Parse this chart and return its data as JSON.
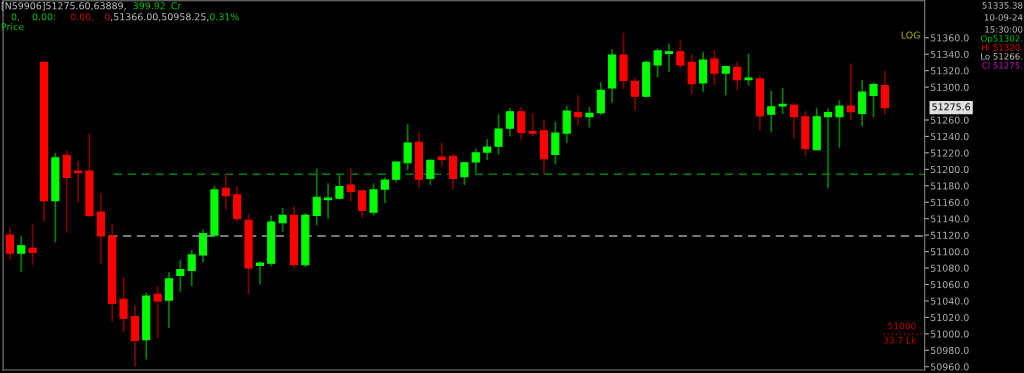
{
  "chart_data": {
    "type": "candlestick",
    "categories": [
      null,
      null,
      null,
      null,
      null,
      null,
      null,
      null,
      null,
      null,
      null,
      null,
      null,
      null,
      null,
      null,
      null,
      null,
      null,
      null,
      null,
      null,
      null,
      null,
      null,
      null,
      null,
      null,
      null,
      null,
      null,
      null,
      null,
      null,
      null,
      null,
      null,
      null,
      null,
      null,
      null,
      null,
      null,
      null,
      null,
      null,
      null,
      null,
      null,
      null,
      null,
      null,
      null,
      null,
      null,
      null,
      null,
      null,
      null,
      null,
      null,
      null,
      null,
      null,
      null,
      null,
      null,
      null,
      null,
      null,
      null,
      null,
      null,
      null,
      null,
      null,
      null,
      null
    ],
    "ohlc": [
      [
        51120,
        51129,
        51090,
        51098
      ],
      [
        51098,
        51119,
        51075,
        51107
      ],
      [
        51104,
        51133,
        51084,
        51099
      ],
      [
        51330,
        51331,
        51137,
        51162
      ],
      [
        51162,
        51220,
        51111,
        51214
      ],
      [
        51217,
        51223,
        51123,
        51190
      ],
      [
        51198,
        51210,
        51159,
        51196
      ],
      [
        51198,
        51244,
        51142,
        51144
      ],
      [
        51148,
        51171,
        51085,
        51119
      ],
      [
        51119,
        51133,
        51015,
        51037
      ],
      [
        51042,
        51069,
        51002,
        51019
      ],
      [
        51021,
        51035,
        50960,
        50992
      ],
      [
        50993,
        51050,
        50969,
        51046
      ],
      [
        51048,
        51058,
        50995,
        51040
      ],
      [
        51041,
        51075,
        51007,
        51067
      ],
      [
        51071,
        51090,
        51051,
        51078
      ],
      [
        51077,
        51102,
        51058,
        51096
      ],
      [
        51096,
        51127,
        51087,
        51122
      ],
      [
        51120,
        51180,
        51117,
        51175
      ],
      [
        51177,
        51195,
        51151,
        51168
      ],
      [
        51169,
        51179,
        51137,
        51140
      ],
      [
        51138,
        51146,
        51048,
        51080
      ],
      [
        51083,
        51088,
        51060,
        51086
      ],
      [
        51086,
        51144,
        51082,
        51136
      ],
      [
        51135,
        51153,
        51124,
        51144
      ],
      [
        51144,
        51155,
        51080,
        51084
      ],
      [
        51084,
        51147,
        51081,
        51144
      ],
      [
        51144,
        51201,
        51132,
        51166
      ],
      [
        51163,
        51183,
        51140,
        51165
      ],
      [
        51165,
        51193,
        51163,
        51179
      ],
      [
        51181,
        51201,
        51161,
        51173
      ],
      [
        51174,
        51174,
        51141,
        51150
      ],
      [
        51148,
        51183,
        51144,
        51175
      ],
      [
        51176,
        51190,
        51159,
        51187
      ],
      [
        51188,
        51210,
        51184,
        51209
      ],
      [
        51208,
        51255,
        51199,
        51232
      ],
      [
        51233,
        51246,
        51177,
        51188
      ],
      [
        51189,
        51212,
        51181,
        51211
      ],
      [
        51215,
        51232,
        51204,
        51212
      ],
      [
        51216,
        51219,
        51176,
        51189
      ],
      [
        51191,
        51209,
        51181,
        51208
      ],
      [
        51209,
        51225,
        51196,
        51220
      ],
      [
        51221,
        51237,
        51211,
        51227
      ],
      [
        51228,
        51267,
        51218,
        51249
      ],
      [
        51250,
        51275,
        51240,
        51270
      ],
      [
        51270,
        51276,
        51235,
        51245
      ],
      [
        51246,
        51268,
        51240,
        51244
      ],
      [
        51247,
        51260,
        51194,
        51213
      ],
      [
        51218,
        51258,
        51206,
        51244
      ],
      [
        51244,
        51277,
        51232,
        51271
      ],
      [
        51269,
        51290,
        51254,
        51264
      ],
      [
        51264,
        51276,
        51251,
        51268
      ],
      [
        51269,
        51306,
        51266,
        51296
      ],
      [
        51299,
        51346,
        51281,
        51339
      ],
      [
        51339,
        51366,
        51298,
        51308
      ],
      [
        51307,
        51311,
        51272,
        51289
      ],
      [
        51289,
        51332,
        51288,
        51330
      ],
      [
        51327,
        51347,
        51312,
        51344
      ],
      [
        51341,
        51353,
        51318,
        51343
      ],
      [
        51343,
        51357,
        51323,
        51327
      ],
      [
        51330,
        51340,
        51291,
        51304
      ],
      [
        51305,
        51343,
        51294,
        51333
      ],
      [
        51334,
        51345,
        51302,
        51317
      ],
      [
        51317,
        51325,
        51290,
        51325
      ],
      [
        51324,
        51331,
        51296,
        51309
      ],
      [
        51309,
        51341,
        51302,
        51311
      ],
      [
        51310,
        51314,
        51247,
        51265
      ],
      [
        51267,
        51296,
        51245,
        51276
      ],
      [
        51277,
        51299,
        51267,
        51279
      ],
      [
        51278,
        51281,
        51238,
        51264
      ],
      [
        51264,
        51271,
        51216,
        51225
      ],
      [
        51224,
        51275,
        51223,
        51264
      ],
      [
        51264,
        51274,
        51177,
        51269
      ],
      [
        51264,
        51284,
        51226,
        51277
      ],
      [
        51277,
        51329,
        51260,
        51270
      ],
      [
        51268,
        51309,
        51252,
        51294
      ],
      [
        51290,
        51306,
        51263,
        51303
      ],
      [
        51302,
        51320,
        51266,
        51275
      ]
    ],
    "colors": [
      "#ff0000",
      "#00ff00",
      "#ff0000",
      "#ff0000",
      "#00ff00",
      "#ff0000",
      "#ff0000",
      "#ff0000",
      "#ff0000",
      "#ff0000",
      "#ff0000",
      "#ff0000",
      "#00ff00",
      "#ff0000",
      "#00ff00",
      "#00ff00",
      "#00ff00",
      "#00ff00",
      "#00ff00",
      "#ff0000",
      "#ff0000",
      "#ff0000",
      "#00ff00",
      "#00ff00",
      "#00ff00",
      "#ff0000",
      "#00ff00",
      "#00ff00",
      "#00ff00",
      "#00ff00",
      "#ff0000",
      "#ff0000",
      "#00ff00",
      "#00ff00",
      "#00ff00",
      "#00ff00",
      "#ff0000",
      "#00ff00",
      "#ff0000",
      "#ff0000",
      "#00ff00",
      "#00ff00",
      "#00ff00",
      "#00ff00",
      "#00ff00",
      "#ff0000",
      "#ff0000",
      "#ff0000",
      "#00ff00",
      "#00ff00",
      "#ff0000",
      "#00ff00",
      "#00ff00",
      "#00ff00",
      "#ff0000",
      "#ff0000",
      "#00ff00",
      "#00ff00",
      "#00ff00",
      "#ff0000",
      "#ff0000",
      "#00ff00",
      "#ff0000",
      "#00ff00",
      "#ff0000",
      "#00ff00",
      "#ff0000",
      "#00ff00",
      "#00ff00",
      "#ff0000",
      "#ff0000",
      "#00ff00",
      "#00ff00",
      "#00ff00",
      "#ff0000",
      "#00ff00",
      "#00ff00",
      "#ff0000"
    ],
    "ylim": [
      50956,
      51405
    ],
    "yticks": [
      {
        "value": 50960,
        "label": "50960.0"
      },
      {
        "value": 50980,
        "label": "50980.0"
      },
      {
        "value": 51000,
        "label": "51000.0"
      },
      {
        "value": 51020,
        "label": "51020.0"
      },
      {
        "value": 51040,
        "label": "51040.0"
      },
      {
        "value": 51060,
        "label": "51060.0"
      },
      {
        "value": 51080,
        "label": "51080.0"
      },
      {
        "value": 51100,
        "label": "51100.0"
      },
      {
        "value": 51120,
        "label": "51120.0"
      },
      {
        "value": 51140,
        "label": "51140.0"
      },
      {
        "value": 51160,
        "label": "51160.0"
      },
      {
        "value": 51180,
        "label": "51180.0"
      },
      {
        "value": 51200,
        "label": "51200.0"
      },
      {
        "value": 51220,
        "label": "51220.0"
      },
      {
        "value": 51240,
        "label": "51240.0"
      },
      {
        "value": 51260,
        "label": "51260.0"
      },
      {
        "value": 51300,
        "label": "51300.0"
      },
      {
        "value": 51320,
        "label": "51320.0"
      },
      {
        "value": 51340,
        "label": "51340.0"
      },
      {
        "value": 51360,
        "label": "51360.0"
      }
    ],
    "tick_labels": "y",
    "grid": false,
    "legend": false,
    "ref_lines": [
      {
        "axis": "y",
        "value": 51194,
        "color": "#008000",
        "line_style": "dashed"
      },
      {
        "axis": "y",
        "value": 51119,
        "color": "#a0a0a0",
        "line_style": "dashed"
      },
      {
        "axis": "y",
        "value": 51000,
        "label": "51000",
        "color": "#c00000",
        "line_style": "dotted"
      }
    ],
    "annotations": [
      "[N59906]51275.60,63889,",
      "399.92",
      "Cr",
      "0,",
      "0.00:",
      "0.00,",
      "0",
      ",51366.00,50958.25,",
      "0.31%",
      "Price",
      "LOG",
      "51335.38",
      "10-09-24",
      "15:30:00",
      "Op51302.",
      "Hi 51320.",
      "Lo 51266.",
      "Cl 51275.",
      "51275.6",
      "33.7 Lk"
    ]
  }
}
